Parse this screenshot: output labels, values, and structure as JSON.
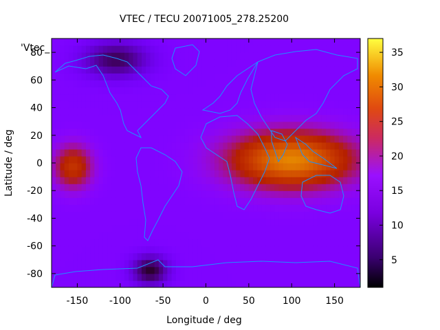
{
  "chart_data": {
    "type": "heatmap",
    "title": "VTEC / TECU 20071005_278.25200",
    "xlabel": "Longitude / deg",
    "ylabel": "Latitude / deg",
    "legend_label": "'Vtec_",
    "xlim": [
      -180,
      180
    ],
    "ylim": [
      -90,
      90
    ],
    "x_ticks": [
      -150,
      -100,
      -50,
      0,
      50,
      100,
      150
    ],
    "y_ticks": [
      -80,
      -60,
      -40,
      -20,
      0,
      20,
      40,
      60,
      80
    ],
    "colorbar": {
      "range": [
        1,
        37
      ],
      "ticks": [
        5,
        10,
        15,
        20,
        25,
        30,
        35
      ]
    },
    "colormap": "gnuplot-pm3d",
    "grid": false,
    "features": [
      {
        "name": "equatorial anomaly",
        "lon": [
          20,
          180
        ],
        "lat": [
          -20,
          25
        ],
        "peak_vtec": 30
      },
      {
        "name": "pacific night-side enhancement",
        "lon": [
          -180,
          -130
        ],
        "lat": [
          -20,
          15
        ],
        "peak_vtec": 22
      },
      {
        "name": "north polar minimum",
        "lon": [
          -150,
          -60
        ],
        "lat": [
          60,
          90
        ],
        "min_vtec": 3
      },
      {
        "name": "south polar minimum",
        "lon": [
          -90,
          -40
        ],
        "lat": [
          -90,
          -65
        ],
        "min_vtec": 2
      }
    ],
    "background_vtec": 10,
    "coastline_color": "#1e90ff"
  }
}
